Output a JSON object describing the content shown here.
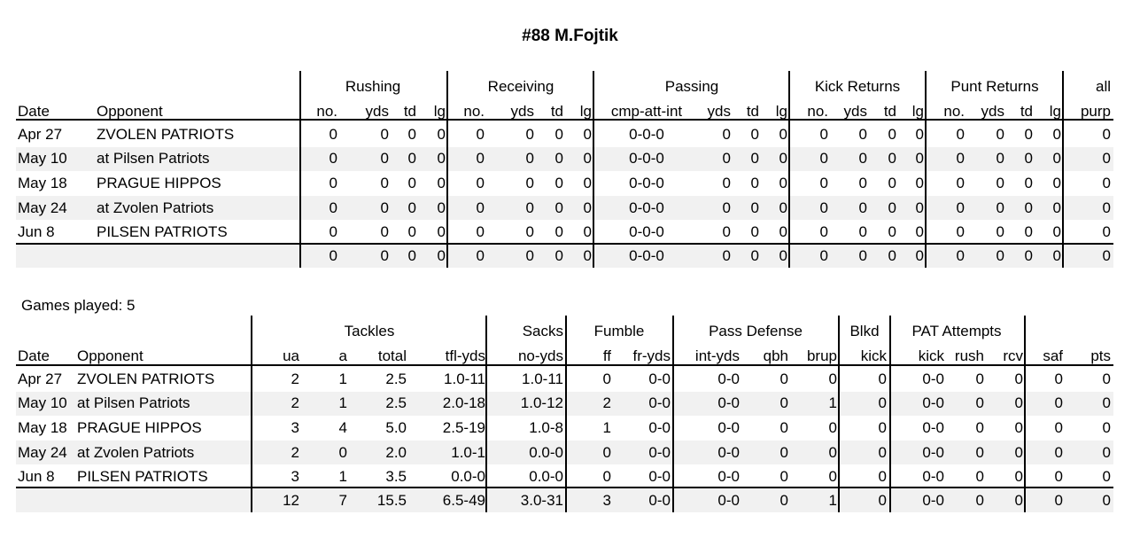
{
  "title": "#88 M.Fojtik",
  "games_played": "Games played: 5",
  "offense": {
    "groups": [
      "Rushing",
      "Receiving",
      "Passing",
      "Kick Returns",
      "Punt Returns",
      "all"
    ],
    "columns": [
      "Date",
      "Opponent",
      "no.",
      "yds",
      "td",
      "lg",
      "no.",
      "yds",
      "td",
      "lg",
      "cmp-att-int",
      "yds",
      "td",
      "lg",
      "no.",
      "yds",
      "td",
      "lg",
      "no.",
      "yds",
      "td",
      "lg",
      "purp"
    ],
    "rows": [
      [
        "Apr 27",
        "ZVOLEN PATRIOTS",
        "0",
        "0",
        "0",
        "0",
        "0",
        "0",
        "0",
        "0",
        "0-0-0",
        "0",
        "0",
        "0",
        "0",
        "0",
        "0",
        "0",
        "0",
        "0",
        "0",
        "0",
        "0"
      ],
      [
        "May 10",
        "at Pilsen Patriots",
        "0",
        "0",
        "0",
        "0",
        "0",
        "0",
        "0",
        "0",
        "0-0-0",
        "0",
        "0",
        "0",
        "0",
        "0",
        "0",
        "0",
        "0",
        "0",
        "0",
        "0",
        "0"
      ],
      [
        "May 18",
        "PRAGUE HIPPOS",
        "0",
        "0",
        "0",
        "0",
        "0",
        "0",
        "0",
        "0",
        "0-0-0",
        "0",
        "0",
        "0",
        "0",
        "0",
        "0",
        "0",
        "0",
        "0",
        "0",
        "0",
        "0"
      ],
      [
        "May 24",
        "at Zvolen Patriots",
        "0",
        "0",
        "0",
        "0",
        "0",
        "0",
        "0",
        "0",
        "0-0-0",
        "0",
        "0",
        "0",
        "0",
        "0",
        "0",
        "0",
        "0",
        "0",
        "0",
        "0",
        "0"
      ],
      [
        "Jun 8",
        "PILSEN PATRIOTS",
        "0",
        "0",
        "0",
        "0",
        "0",
        "0",
        "0",
        "0",
        "0-0-0",
        "0",
        "0",
        "0",
        "0",
        "0",
        "0",
        "0",
        "0",
        "0",
        "0",
        "0",
        "0"
      ]
    ],
    "totals": [
      "",
      "",
      "0",
      "0",
      "0",
      "0",
      "0",
      "0",
      "0",
      "0",
      "0-0-0",
      "0",
      "0",
      "0",
      "0",
      "0",
      "0",
      "0",
      "0",
      "0",
      "0",
      "0",
      "0"
    ]
  },
  "defense": {
    "groups": [
      "Tackles",
      "Sacks",
      "Fumble",
      "Pass Defense",
      "Blkd",
      "PAT Attempts"
    ],
    "columns": [
      "Date",
      "Opponent",
      "ua",
      "a",
      "total",
      "tfl-yds",
      "no-yds",
      "ff",
      "fr-yds",
      "int-yds",
      "qbh",
      "brup",
      "kick",
      "kick",
      "rush",
      "rcv",
      "saf",
      "pts"
    ],
    "rows": [
      [
        "Apr 27",
        "ZVOLEN PATRIOTS",
        "2",
        "1",
        "2.5",
        "1.0-11",
        "1.0-11",
        "0",
        "0-0",
        "0-0",
        "0",
        "0",
        "0",
        "0-0",
        "0",
        "0",
        "0",
        "0"
      ],
      [
        "May 10",
        "at Pilsen Patriots",
        "2",
        "1",
        "2.5",
        "2.0-18",
        "1.0-12",
        "2",
        "0-0",
        "0-0",
        "0",
        "1",
        "0",
        "0-0",
        "0",
        "0",
        "0",
        "0"
      ],
      [
        "May 18",
        "PRAGUE HIPPOS",
        "3",
        "4",
        "5.0",
        "2.5-19",
        "1.0-8",
        "1",
        "0-0",
        "0-0",
        "0",
        "0",
        "0",
        "0-0",
        "0",
        "0",
        "0",
        "0"
      ],
      [
        "May 24",
        "at Zvolen Patriots",
        "2",
        "0",
        "2.0",
        "1.0-1",
        "0.0-0",
        "0",
        "0-0",
        "0-0",
        "0",
        "0",
        "0",
        "0-0",
        "0",
        "0",
        "0",
        "0"
      ],
      [
        "Jun 8",
        "PILSEN PATRIOTS",
        "3",
        "1",
        "3.5",
        "0.0-0",
        "0.0-0",
        "0",
        "0-0",
        "0-0",
        "0",
        "0",
        "0",
        "0-0",
        "0",
        "0",
        "0",
        "0"
      ]
    ],
    "totals": [
      "",
      "",
      "12",
      "7",
      "15.5",
      "6.5-49",
      "3.0-31",
      "3",
      "0-0",
      "0-0",
      "0",
      "1",
      "0",
      "0-0",
      "0",
      "0",
      "0",
      "0"
    ]
  },
  "colors": {
    "band": "#f1f1f1",
    "rule": "#000000"
  }
}
